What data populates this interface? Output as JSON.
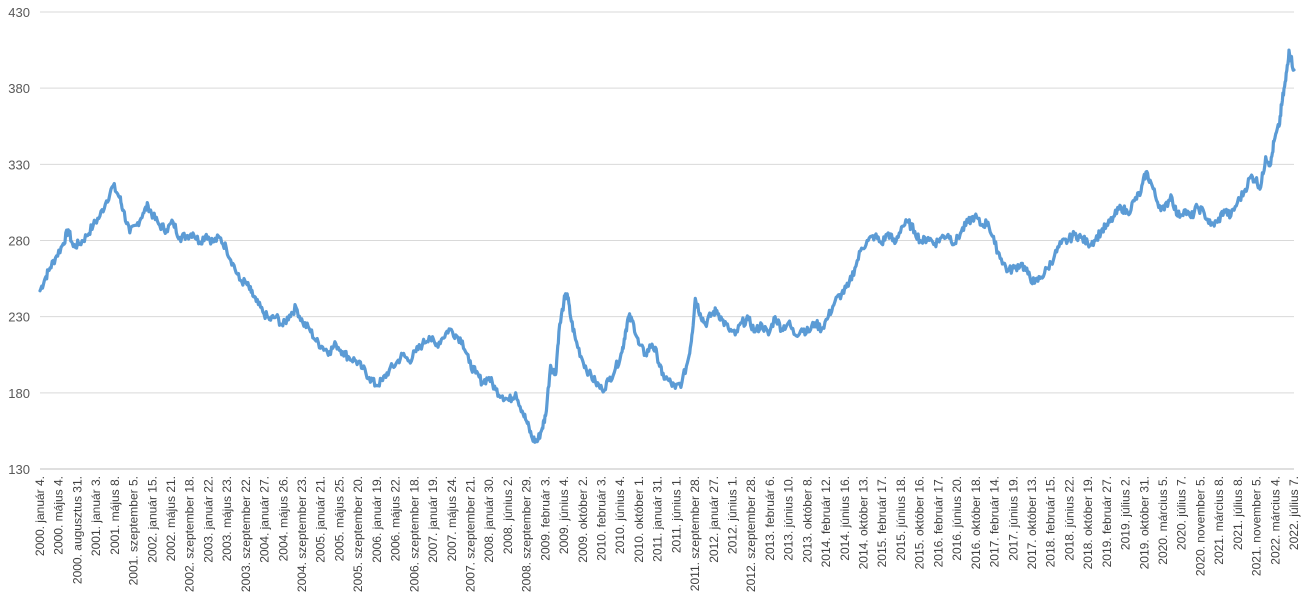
{
  "chart_data": {
    "type": "line",
    "title": "",
    "xlabel": "",
    "ylabel": "",
    "ylim": [
      130,
      430
    ],
    "y_ticks": [
      "130",
      "180",
      "230",
      "280",
      "330",
      "380",
      "430"
    ],
    "grid": true,
    "legend": "none",
    "colors": {
      "line": "#5b9bd5",
      "grid": "#d9d9d9",
      "text": "#595959"
    },
    "x_tick_labels": [
      "2000. január 4.",
      "2000. május 4.",
      "2000. augusztus 31.",
      "2001. január 3.",
      "2001. május 8.",
      "2001. szeptember 5.",
      "2002. január 15.",
      "2002. május 21.",
      "2002. szeptember 18.",
      "2003. január 22.",
      "2003. május 23.",
      "2003. szeptember 22.",
      "2004. január 27.",
      "2004. május 26.",
      "2004. szeptember 23.",
      "2005. január 21.",
      "2005. május 25.",
      "2005. szeptember 20.",
      "2006. január 19.",
      "2006. május 22.",
      "2006. szeptember 18.",
      "2007. január 19.",
      "2007. május 24.",
      "2007. szeptember 21.",
      "2008. január 30.",
      "2008. június 2.",
      "2008. szeptember 29.",
      "2009. február 3.",
      "2009. június 4.",
      "2009. október 2.",
      "2010. február 3.",
      "2010. június 4.",
      "2010. október 1.",
      "2011. január 31.",
      "2011. június 1.",
      "2011. szeptember 28.",
      "2012. január 27.",
      "2012. június 1.",
      "2012. szeptember 28.",
      "2013. február 6.",
      "2013. június 10.",
      "2013. október 8.",
      "2014. február 12.",
      "2014. június 16.",
      "2014. október 13.",
      "2015. február 17.",
      "2015. június 18.",
      "2015. október 16.",
      "2016. február 17.",
      "2016. június 20.",
      "2016. október 18.",
      "2017. február 14.",
      "2017. június 19.",
      "2017. október 13.",
      "2018. február 15.",
      "2018. június 22.",
      "2018. október 19.",
      "2019. február 27.",
      "2019. július 2.",
      "2019. október 31.",
      "2020. március 5.",
      "2020. július 7.",
      "2020. november 5.",
      "2021. március 8.",
      "2021. július 8.",
      "2021. november 5.",
      "2022. március 4.",
      "2022. július 7."
    ],
    "series": [
      {
        "points": [
          [
            0,
            247
          ],
          [
            0.15,
            255
          ],
          [
            0.3,
            262
          ],
          [
            0.5,
            270
          ],
          [
            0.7,
            278
          ],
          [
            0.85,
            287
          ],
          [
            1.0,
            276
          ],
          [
            1.2,
            278
          ],
          [
            1.4,
            283
          ],
          [
            1.6,
            290
          ],
          [
            1.8,
            296
          ],
          [
            2.0,
            306
          ],
          [
            2.2,
            316
          ],
          [
            2.4,
            308
          ],
          [
            2.5,
            300
          ],
          [
            2.7,
            285
          ],
          [
            2.9,
            290
          ],
          [
            3.1,
            298
          ],
          [
            3.25,
            303
          ],
          [
            3.4,
            296
          ],
          [
            3.6,
            290
          ],
          [
            3.8,
            287
          ],
          [
            4.0,
            292
          ],
          [
            4.2,
            282
          ],
          [
            4.4,
            283
          ],
          [
            4.6,
            285
          ],
          [
            4.8,
            279
          ],
          [
            5.0,
            284
          ],
          [
            5.2,
            279
          ],
          [
            5.4,
            282
          ],
          [
            5.6,
            275
          ],
          [
            5.8,
            265
          ],
          [
            6.0,
            254
          ],
          [
            6.2,
            252
          ],
          [
            6.35,
            246
          ],
          [
            6.5,
            240
          ],
          [
            6.7,
            233
          ],
          [
            6.9,
            228
          ],
          [
            7.1,
            230
          ],
          [
            7.3,
            224
          ],
          [
            7.5,
            231
          ],
          [
            7.7,
            236
          ],
          [
            7.9,
            226
          ],
          [
            8.1,
            222
          ],
          [
            8.3,
            214
          ],
          [
            8.5,
            210
          ],
          [
            8.7,
            207
          ],
          [
            8.9,
            212
          ],
          [
            9.1,
            207
          ],
          [
            9.3,
            203
          ],
          [
            9.5,
            201
          ],
          [
            9.7,
            196
          ],
          [
            9.9,
            190
          ],
          [
            10.1,
            185
          ],
          [
            10.3,
            188
          ],
          [
            10.5,
            195
          ],
          [
            10.7,
            199
          ],
          [
            10.9,
            205
          ],
          [
            11.1,
            201
          ],
          [
            11.3,
            207
          ],
          [
            11.5,
            212
          ],
          [
            11.7,
            217
          ],
          [
            11.9,
            211
          ],
          [
            12.1,
            216
          ],
          [
            12.3,
            222
          ],
          [
            12.5,
            218
          ],
          [
            12.7,
            214
          ],
          [
            12.9,
            200
          ],
          [
            13.1,
            193
          ],
          [
            13.3,
            187
          ],
          [
            13.5,
            190
          ],
          [
            13.7,
            182
          ],
          [
            13.9,
            178
          ],
          [
            14.1,
            175
          ],
          [
            14.3,
            180
          ],
          [
            14.5,
            168
          ],
          [
            14.65,
            160
          ],
          [
            14.8,
            150
          ],
          [
            14.95,
            148
          ],
          [
            15.1,
            157
          ],
          [
            15.2,
            165
          ],
          [
            15.35,
            198
          ],
          [
            15.5,
            192
          ],
          [
            15.6,
            220
          ],
          [
            15.75,
            240
          ],
          [
            15.85,
            245
          ],
          [
            15.95,
            230
          ],
          [
            16.1,
            215
          ],
          [
            16.3,
            202
          ],
          [
            16.5,
            193
          ],
          [
            16.7,
            187
          ],
          [
            16.9,
            182
          ],
          [
            17.1,
            188
          ],
          [
            17.3,
            196
          ],
          [
            17.5,
            207
          ],
          [
            17.6,
            220
          ],
          [
            17.7,
            230
          ],
          [
            17.85,
            225
          ],
          [
            18.0,
            212
          ],
          [
            18.2,
            205
          ],
          [
            18.4,
            212
          ],
          [
            18.55,
            205
          ],
          [
            18.7,
            192
          ],
          [
            18.9,
            188
          ],
          [
            19.1,
            183
          ],
          [
            19.3,
            187
          ],
          [
            19.5,
            203
          ],
          [
            19.6,
            218
          ],
          [
            19.7,
            242
          ],
          [
            19.85,
            232
          ],
          [
            20.0,
            225
          ],
          [
            20.2,
            232
          ],
          [
            20.35,
            234
          ],
          [
            20.5,
            228
          ],
          [
            20.7,
            222
          ],
          [
            20.9,
            218
          ],
          [
            21.1,
            226
          ],
          [
            21.3,
            228
          ],
          [
            21.5,
            220
          ],
          [
            21.7,
            225
          ],
          [
            21.9,
            218
          ],
          [
            22.1,
            230
          ],
          [
            22.3,
            222
          ],
          [
            22.5,
            226
          ],
          [
            22.7,
            218
          ],
          [
            22.9,
            222
          ],
          [
            23.1,
            220
          ],
          [
            23.3,
            226
          ],
          [
            23.5,
            222
          ],
          [
            23.7,
            230
          ],
          [
            23.9,
            240
          ],
          [
            24.1,
            245
          ],
          [
            24.3,
            250
          ],
          [
            24.5,
            262
          ],
          [
            24.7,
            275
          ],
          [
            24.9,
            280
          ],
          [
            25.1,
            283
          ],
          [
            25.3,
            278
          ],
          [
            25.5,
            285
          ],
          [
            25.7,
            278
          ],
          [
            25.9,
            289
          ],
          [
            26.1,
            292
          ],
          [
            26.3,
            286
          ],
          [
            26.5,
            279
          ],
          [
            26.7,
            282
          ],
          [
            26.9,
            278
          ],
          [
            27.1,
            282
          ],
          [
            27.3,
            284
          ],
          [
            27.5,
            278
          ],
          [
            27.7,
            286
          ],
          [
            27.9,
            292
          ],
          [
            28.1,
            296
          ],
          [
            28.3,
            290
          ],
          [
            28.5,
            292
          ],
          [
            28.7,
            278
          ],
          [
            28.9,
            268
          ],
          [
            29.1,
            260
          ],
          [
            29.3,
            262
          ],
          [
            29.5,
            265
          ],
          [
            29.7,
            258
          ],
          [
            29.9,
            252
          ],
          [
            30.1,
            256
          ],
          [
            30.3,
            262
          ],
          [
            30.5,
            270
          ],
          [
            30.7,
            278
          ],
          [
            30.9,
            280
          ],
          [
            31.1,
            284
          ],
          [
            31.3,
            282
          ],
          [
            31.5,
            278
          ],
          [
            31.7,
            280
          ],
          [
            31.9,
            286
          ],
          [
            32.1,
            290
          ],
          [
            32.3,
            296
          ],
          [
            32.5,
            302
          ],
          [
            32.7,
            298
          ],
          [
            32.9,
            306
          ],
          [
            33.1,
            312
          ],
          [
            33.25,
            325
          ],
          [
            33.4,
            318
          ],
          [
            33.6,
            305
          ],
          [
            33.8,
            300
          ],
          [
            34.0,
            310
          ],
          [
            34.2,
            296
          ],
          [
            34.4,
            300
          ],
          [
            34.6,
            295
          ],
          [
            34.8,
            302
          ],
          [
            35.0,
            298
          ],
          [
            35.2,
            290
          ],
          [
            35.4,
            292
          ],
          [
            35.6,
            300
          ],
          [
            35.8,
            296
          ],
          [
            36.0,
            305
          ],
          [
            36.2,
            312
          ],
          [
            36.4,
            322
          ],
          [
            36.55,
            320
          ],
          [
            36.7,
            315
          ],
          [
            36.85,
            335
          ],
          [
            37.0,
            330
          ],
          [
            37.1,
            345
          ],
          [
            37.25,
            355
          ],
          [
            37.35,
            372
          ],
          [
            37.45,
            385
          ],
          [
            37.55,
            405
          ],
          [
            37.7,
            392
          ]
        ]
      }
    ]
  }
}
